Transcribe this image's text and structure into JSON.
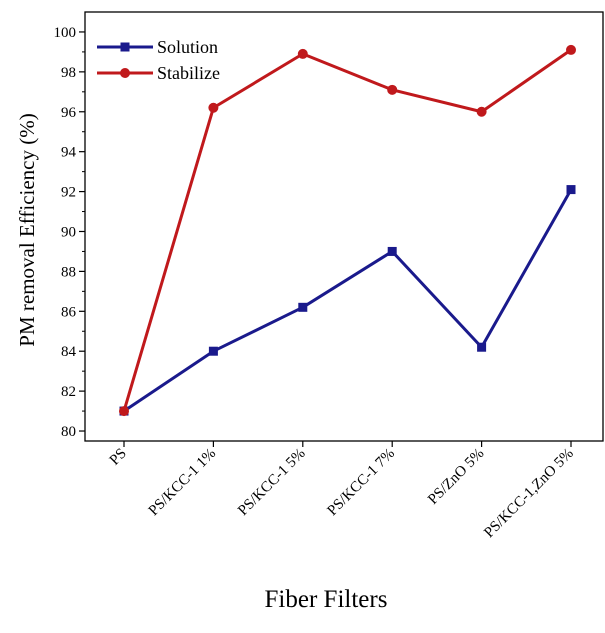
{
  "chart_data": {
    "type": "line",
    "title": "",
    "xlabel": "Fiber Filters",
    "ylabel": "PM removal Efficiency (%)",
    "categories": [
      "PS",
      "PS/KCC-1 1%",
      "PS/KCC-1 5%",
      "PS/KCC-1 7%",
      "PS/ZnO 5%",
      "PS/KCC-1,ZnO 5%"
    ],
    "ylim": [
      79.5,
      101
    ],
    "yticks": [
      80,
      82,
      84,
      86,
      88,
      90,
      92,
      94,
      96,
      98,
      100
    ],
    "grid": false,
    "legend_position": "top-left",
    "series": [
      {
        "name": "Solution",
        "color": "#1a1a8c",
        "marker": "square",
        "values": [
          81.0,
          84.0,
          86.2,
          89.0,
          84.2,
          92.1
        ]
      },
      {
        "name": "Stabilize",
        "color": "#c0191c",
        "marker": "circle",
        "values": [
          81.0,
          96.2,
          98.9,
          97.1,
          96.0,
          99.1
        ]
      }
    ]
  }
}
